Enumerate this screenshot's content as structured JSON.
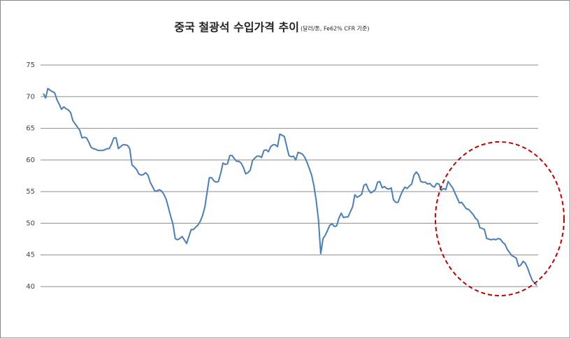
{
  "chart_data": {
    "type": "line",
    "title": "중국 철광석 수입가격 추이",
    "subtitle": "(달러/톤, Fe62% CFR 기준)",
    "color": "#4a7ebb",
    "values": [
      70.5,
      69.8,
      71.3,
      71.0,
      70.8,
      70.6,
      69.5,
      68.8,
      68.0,
      68.4,
      68.1,
      67.9,
      67.5,
      66.2,
      65.7,
      65.2,
      64.7,
      63.5,
      63.6,
      63.5,
      62.8,
      62.0,
      61.8,
      61.7,
      61.5,
      61.5,
      61.5,
      61.6,
      61.8,
      61.8,
      62.5,
      63.5,
      63.5,
      61.8,
      62.1,
      62.4,
      62.4,
      62.3,
      61.8,
      59.2,
      58.9,
      58.5,
      57.8,
      57.6,
      57.7,
      58.0,
      57.6,
      56.5,
      55.8,
      55.1,
      55.1,
      55.3,
      55.1,
      54.6,
      53.8,
      52.5,
      51.1,
      49.9,
      47.6,
      47.4,
      47.6,
      47.9,
      47.4,
      46.8,
      47.9,
      49.0,
      49.0,
      49.4,
      49.7,
      50.3,
      51.2,
      52.5,
      54.8,
      57.2,
      57.2,
      56.7,
      56.5,
      56.6,
      57.9,
      59.5,
      59.3,
      59.4,
      60.7,
      60.7,
      60.2,
      59.8,
      59.8,
      59.5,
      58.8,
      57.8,
      58.0,
      58.4,
      59.9,
      60.3,
      60.6,
      60.6,
      60.4,
      61.5,
      61.6,
      61.3,
      62.1,
      62.4,
      62.4,
      62.1,
      64.1,
      63.9,
      63.7,
      62.2,
      60.7,
      60.5,
      60.6,
      60.0,
      61.2,
      61.1,
      60.9,
      60.4,
      59.6,
      58.6,
      57.6,
      55.9,
      53.6,
      50.5,
      45.2,
      47.6,
      48.1,
      48.9,
      49.7,
      49.9,
      49.5,
      49.6,
      50.8,
      51.6,
      50.9,
      51.0,
      51.0,
      51.8,
      52.6,
      54.5,
      54.1,
      54.3,
      54.6,
      56.0,
      56.2,
      55.3,
      54.8,
      55.0,
      55.3,
      56.5,
      56.6,
      55.6,
      55.8,
      55.5,
      55.4,
      55.6,
      53.7,
      53.3,
      53.3,
      54.3,
      55.1,
      55.7,
      55.5,
      55.9,
      56.2,
      57.6,
      58.1,
      57.7,
      56.6,
      56.5,
      56.5,
      56.2,
      56.3,
      55.9,
      55.7,
      56.3,
      56.2,
      55.2,
      55.5,
      55.3,
      56.6,
      56.1,
      55.6,
      54.8,
      54.0,
      53.2,
      53.3,
      52.8,
      52.3,
      52.2,
      51.8,
      51.4,
      50.8,
      50.5,
      49.3,
      49.2,
      49.0,
      47.6,
      47.5,
      47.4,
      47.5,
      47.4,
      47.6,
      47.5,
      47.0,
      46.7,
      45.9,
      45.4,
      44.9,
      44.7,
      44.5,
      43.2,
      43.4,
      44.0,
      43.7,
      42.9,
      41.9,
      41.0,
      40.6,
      40.2
    ],
    "ylim": [
      40,
      75
    ],
    "yticks": [
      40,
      45,
      50,
      55,
      60,
      65,
      70,
      75
    ],
    "grid": true
  }
}
